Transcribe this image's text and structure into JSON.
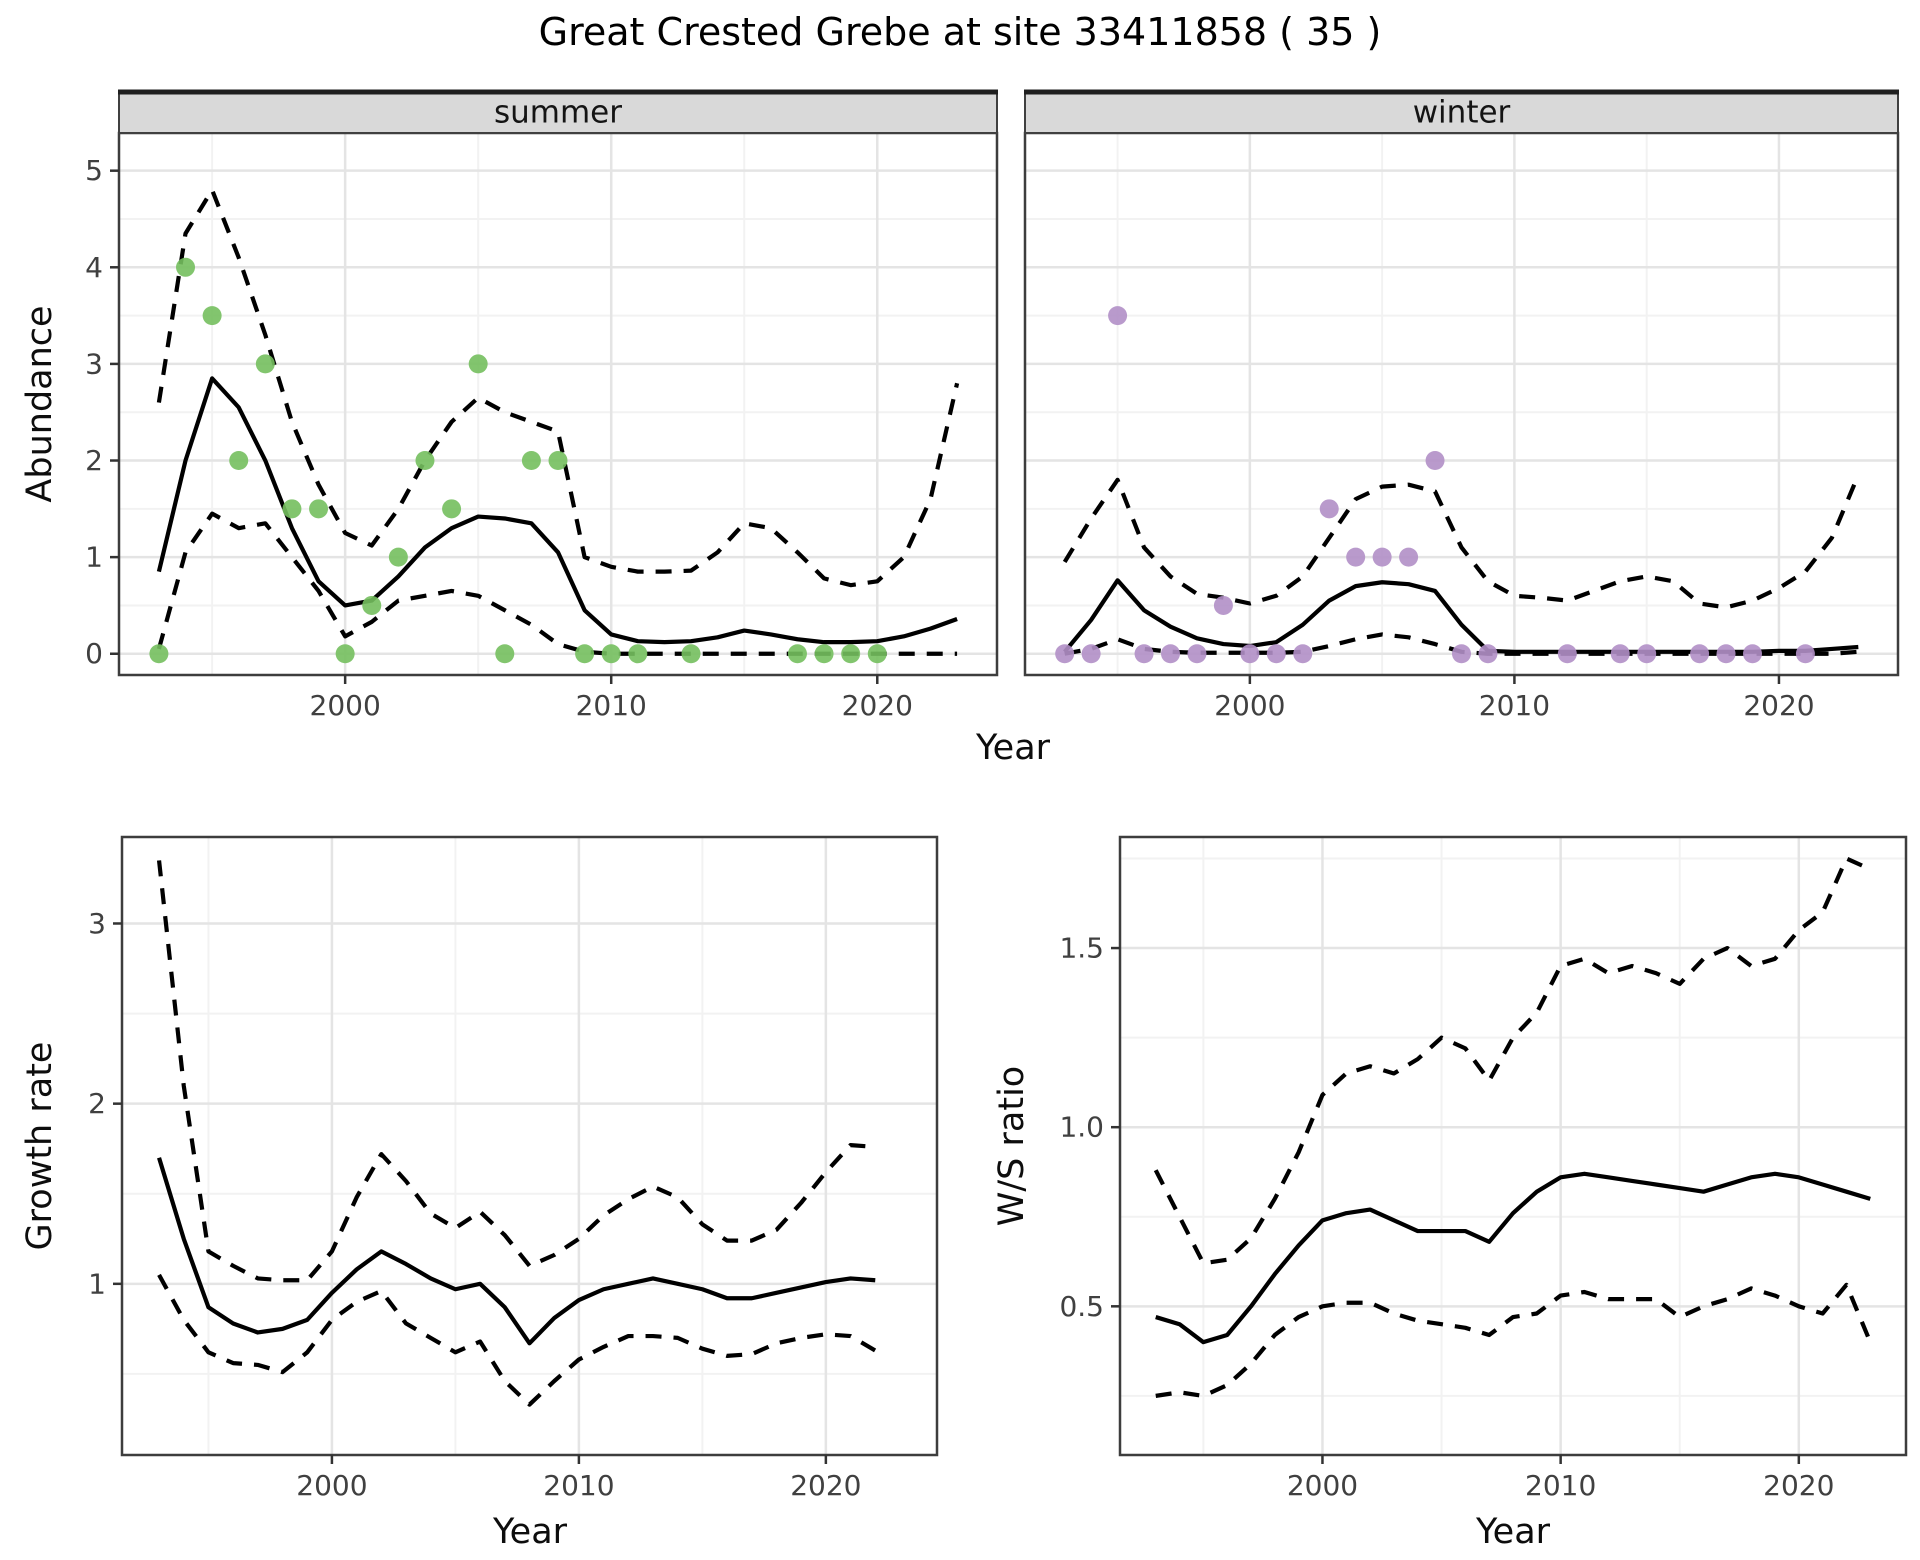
{
  "chart_data": {
    "type": "line",
    "title": "Great Crested Grebe at site 33411858 ( 35 )",
    "xlabel": "Year",
    "x_range": [
      1991.5,
      2024.5
    ],
    "x_ticks": [
      2000,
      2010,
      2020
    ],
    "x_tick_labels": [
      "2000",
      "2010",
      "2020"
    ],
    "x_minor_ticks": [
      1995,
      2005,
      2015
    ],
    "legend": "none",
    "grid": "on",
    "style": {
      "summer_point_color": "#74bf5e",
      "winter_point_color": "#b18fc6",
      "line_color": "#000000",
      "strip_bg": "#d9d9d9",
      "panel_border": "#3d3d3d",
      "grid_major": "#e4e4e4",
      "grid_minor": "#f2f2f2",
      "tick_text": "#404040"
    },
    "panels": [
      {
        "id": "summer",
        "strip": "summer",
        "ylabel": "Abundance",
        "show_y_axis": true,
        "y_range": [
          -0.22,
          5.39
        ],
        "y_ticks": [
          0,
          1,
          2,
          3,
          4,
          5
        ],
        "y_tick_labels": [
          "0",
          "1",
          "2",
          "3",
          "4",
          "5"
        ],
        "y_minor_ticks": [
          0.5,
          1.5,
          2.5,
          3.5,
          4.5
        ],
        "points": {
          "years": [
            1993,
            1994,
            1995,
            1996,
            1997,
            1998,
            1999,
            2000,
            2001,
            2002,
            2003,
            2004,
            2005,
            2006,
            2007,
            2008,
            2009,
            2010,
            2011,
            2013,
            2017,
            2018,
            2019,
            2020
          ],
          "values": [
            0,
            4,
            3.5,
            2,
            3,
            1.5,
            1.5,
            0,
            0.5,
            1,
            2,
            1.5,
            3,
            0,
            2,
            2,
            0,
            0,
            0,
            0,
            0,
            0,
            0,
            0
          ]
        },
        "fit": {
          "year_start": 1993,
          "values": [
            0.85,
            2.0,
            2.85,
            2.55,
            2.0,
            1.3,
            0.75,
            0.5,
            0.55,
            0.8,
            1.1,
            1.3,
            1.42,
            1.4,
            1.35,
            1.05,
            0.45,
            0.2,
            0.13,
            0.12,
            0.13,
            0.17,
            0.24,
            0.2,
            0.15,
            0.12,
            0.12,
            0.13,
            0.18,
            0.26,
            0.36
          ]
        },
        "ci_upper": {
          "year_start": 1993,
          "values": [
            2.6,
            4.35,
            4.8,
            4.1,
            3.3,
            2.4,
            1.75,
            1.25,
            1.12,
            1.5,
            2.0,
            2.4,
            2.65,
            2.5,
            2.4,
            2.3,
            1.0,
            0.9,
            0.85,
            0.85,
            0.86,
            1.05,
            1.35,
            1.3,
            1.05,
            0.78,
            0.71,
            0.75,
            1.0,
            1.6,
            2.8
          ]
        },
        "ci_lower": {
          "year_start": 1993,
          "values": [
            0.05,
            1.05,
            1.45,
            1.3,
            1.35,
            1.0,
            0.65,
            0.18,
            0.33,
            0.55,
            0.6,
            0.65,
            0.6,
            0.45,
            0.3,
            0.1,
            0.02,
            0,
            0,
            0,
            0,
            0,
            0,
            0,
            0,
            0,
            0,
            0,
            0,
            0,
            0
          ]
        }
      },
      {
        "id": "winter",
        "strip": "winter",
        "ylabel": "",
        "show_y_axis": false,
        "y_range": [
          -0.22,
          5.39
        ],
        "y_ticks": [
          0,
          1,
          2,
          3,
          4,
          5
        ],
        "y_tick_labels": [
          "0",
          "1",
          "2",
          "3",
          "4",
          "5"
        ],
        "y_minor_ticks": [
          0.5,
          1.5,
          2.5,
          3.5,
          4.5
        ],
        "points": {
          "years": [
            1993,
            1994,
            1995,
            1996,
            1997,
            1998,
            1999,
            2000,
            2001,
            2002,
            2003,
            2004,
            2005,
            2006,
            2007,
            2008,
            2009,
            2012,
            2014,
            2015,
            2017,
            2018,
            2019,
            2021
          ],
          "values": [
            0,
            0,
            3.5,
            0,
            0,
            0,
            0.5,
            0,
            0,
            0,
            1.5,
            1,
            1,
            1,
            2,
            0,
            0,
            0,
            0,
            0,
            0,
            0,
            0,
            0
          ]
        },
        "fit": {
          "year_start": 1993,
          "values": [
            0.02,
            0.35,
            0.76,
            0.45,
            0.28,
            0.16,
            0.1,
            0.08,
            0.12,
            0.3,
            0.55,
            0.7,
            0.74,
            0.72,
            0.65,
            0.3,
            0.03,
            0.02,
            0.02,
            0.02,
            0.02,
            0.02,
            0.02,
            0.02,
            0.02,
            0.02,
            0.02,
            0.03,
            0.03,
            0.05,
            0.07
          ]
        },
        "ci_upper": {
          "year_start": 1993,
          "values": [
            0.95,
            1.4,
            1.8,
            1.1,
            0.8,
            0.62,
            0.58,
            0.52,
            0.6,
            0.8,
            1.2,
            1.6,
            1.73,
            1.75,
            1.68,
            1.1,
            0.75,
            0.6,
            0.58,
            0.55,
            0.65,
            0.75,
            0.8,
            0.75,
            0.52,
            0.48,
            0.55,
            0.68,
            0.85,
            1.2,
            1.85
          ]
        },
        "ci_lower": {
          "year_start": 1993,
          "values": [
            0,
            0.05,
            0.15,
            0.05,
            0.02,
            0.01,
            0.01,
            0.01,
            0.01,
            0.02,
            0.08,
            0.15,
            0.2,
            0.17,
            0.1,
            0.02,
            0,
            0,
            0,
            0,
            0,
            0,
            0,
            0,
            0,
            0,
            0,
            0,
            0,
            0,
            0.02
          ]
        }
      },
      {
        "id": "growth",
        "strip": null,
        "ylabel": "Growth rate",
        "show_y_axis": true,
        "y_range": [
          0.05,
          3.48
        ],
        "y_ticks": [
          1,
          2,
          3
        ],
        "y_tick_labels": [
          "1",
          "2",
          "3"
        ],
        "y_minor_ticks": [
          0.5,
          1.5,
          2.5
        ],
        "points": null,
        "fit": {
          "year_start": 1993,
          "values": [
            1.7,
            1.25,
            0.87,
            0.78,
            0.73,
            0.75,
            0.8,
            0.95,
            1.08,
            1.18,
            1.11,
            1.03,
            0.97,
            1.0,
            0.87,
            0.67,
            0.81,
            0.91,
            0.97,
            1.0,
            1.03,
            1.0,
            0.97,
            0.92,
            0.92,
            0.95,
            0.98,
            1.01,
            1.03,
            1.02
          ]
        },
        "ci_upper": {
          "year_start": 1993,
          "values": [
            3.35,
            2.1,
            1.18,
            1.1,
            1.03,
            1.02,
            1.02,
            1.18,
            1.48,
            1.72,
            1.57,
            1.39,
            1.31,
            1.4,
            1.27,
            1.1,
            1.16,
            1.25,
            1.38,
            1.47,
            1.54,
            1.48,
            1.33,
            1.24,
            1.24,
            1.3,
            1.45,
            1.62,
            1.77,
            1.76
          ]
        },
        "ci_lower": {
          "year_start": 1993,
          "values": [
            1.05,
            0.8,
            0.62,
            0.56,
            0.55,
            0.51,
            0.62,
            0.8,
            0.9,
            0.96,
            0.78,
            0.7,
            0.62,
            0.68,
            0.46,
            0.33,
            0.46,
            0.58,
            0.65,
            0.71,
            0.71,
            0.7,
            0.64,
            0.6,
            0.61,
            0.67,
            0.7,
            0.72,
            0.71,
            0.63
          ]
        }
      },
      {
        "id": "ws",
        "strip": null,
        "ylabel": "W/S ratio",
        "show_y_axis": true,
        "y_range": [
          0.085,
          1.81
        ],
        "y_ticks": [
          0.5,
          1.0,
          1.5
        ],
        "y_tick_labels": [
          "0.5",
          "1.0",
          "1.5"
        ],
        "y_minor_ticks": [
          0.25,
          0.75,
          1.25,
          1.75
        ],
        "points": null,
        "fit": {
          "year_start": 1993,
          "values": [
            0.47,
            0.45,
            0.4,
            0.42,
            0.5,
            0.59,
            0.67,
            0.74,
            0.76,
            0.77,
            0.74,
            0.71,
            0.71,
            0.71,
            0.68,
            0.76,
            0.82,
            0.86,
            0.87,
            0.86,
            0.85,
            0.84,
            0.83,
            0.82,
            0.84,
            0.86,
            0.87,
            0.86,
            0.84,
            0.82,
            0.8
          ]
        },
        "ci_upper": {
          "year_start": 1993,
          "values": [
            0.88,
            0.75,
            0.62,
            0.63,
            0.69,
            0.8,
            0.93,
            1.09,
            1.15,
            1.17,
            1.15,
            1.19,
            1.25,
            1.22,
            1.13,
            1.25,
            1.32,
            1.45,
            1.47,
            1.43,
            1.45,
            1.43,
            1.4,
            1.47,
            1.5,
            1.45,
            1.47,
            1.55,
            1.6,
            1.75,
            1.72
          ]
        },
        "ci_lower": {
          "year_start": 1993,
          "values": [
            0.25,
            0.26,
            0.25,
            0.28,
            0.34,
            0.42,
            0.47,
            0.5,
            0.51,
            0.51,
            0.48,
            0.46,
            0.45,
            0.44,
            0.42,
            0.47,
            0.48,
            0.53,
            0.54,
            0.52,
            0.52,
            0.52,
            0.47,
            0.5,
            0.52,
            0.55,
            0.53,
            0.5,
            0.48,
            0.56,
            0.4
          ]
        }
      }
    ]
  }
}
